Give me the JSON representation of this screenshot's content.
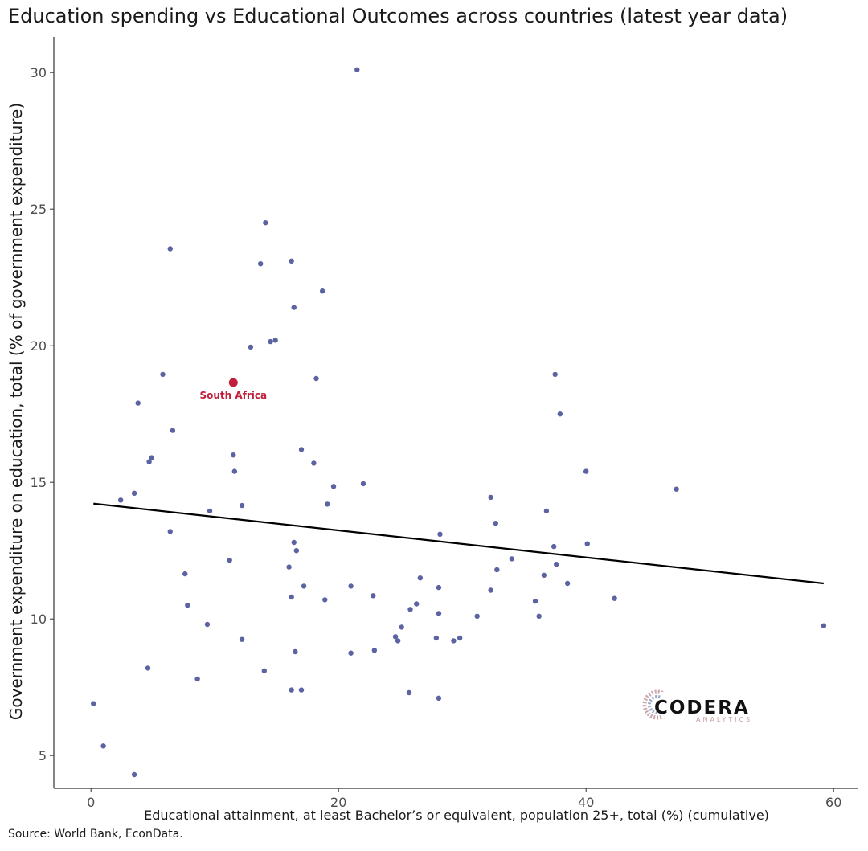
{
  "chart_data": {
    "type": "scatter",
    "title": "Education spending vs Educational Outcomes across countries (latest year data)",
    "xlabel": "Educational attainment, at least Bachelor’s or equivalent, population 25+, total (%) (cumulative)",
    "ylabel": "Government expenditure on education, total (% of government expenditure)",
    "xlim": [
      -3,
      62
    ],
    "ylim": [
      3.8,
      31.3
    ],
    "xticks": [
      0,
      20,
      40,
      60
    ],
    "yticks": [
      5,
      10,
      15,
      20,
      25,
      30
    ],
    "grid": false,
    "point_color": "#5b63a2",
    "highlight_color": "#c0203b",
    "line_color": "#000000",
    "highlight": {
      "name": "South Africa",
      "x": 11.5,
      "y": 18.65
    },
    "trendline": {
      "x": [
        0.2,
        59.2
      ],
      "y": [
        14.22,
        11.3
      ]
    },
    "points": [
      [
        21.5,
        30.1
      ],
      [
        14.1,
        24.5
      ],
      [
        6.4,
        23.55
      ],
      [
        13.7,
        23.0
      ],
      [
        16.2,
        23.1
      ],
      [
        18.7,
        22.0
      ],
      [
        16.4,
        21.4
      ],
      [
        12.9,
        19.95
      ],
      [
        14.5,
        20.15
      ],
      [
        14.9,
        20.2
      ],
      [
        5.8,
        18.95
      ],
      [
        18.2,
        18.8
      ],
      [
        3.8,
        17.9
      ],
      [
        6.6,
        16.9
      ],
      [
        11.5,
        16.0
      ],
      [
        17.0,
        16.2
      ],
      [
        4.7,
        15.75
      ],
      [
        4.9,
        15.9
      ],
      [
        11.6,
        15.4
      ],
      [
        18.0,
        15.7
      ],
      [
        3.5,
        14.6
      ],
      [
        19.6,
        14.85
      ],
      [
        22.0,
        14.95
      ],
      [
        2.4,
        14.35
      ],
      [
        9.6,
        13.95
      ],
      [
        12.2,
        14.15
      ],
      [
        19.1,
        14.2
      ],
      [
        6.4,
        13.2
      ],
      [
        16.4,
        12.8
      ],
      [
        16.6,
        12.5
      ],
      [
        11.2,
        12.15
      ],
      [
        7.6,
        11.65
      ],
      [
        16.0,
        11.9
      ],
      [
        17.2,
        11.2
      ],
      [
        21.0,
        11.2
      ],
      [
        7.8,
        10.5
      ],
      [
        16.2,
        10.8
      ],
      [
        18.9,
        10.7
      ],
      [
        22.8,
        10.85
      ],
      [
        9.4,
        9.8
      ],
      [
        12.2,
        9.25
      ],
      [
        16.5,
        8.8
      ],
      [
        4.6,
        8.2
      ],
      [
        8.6,
        7.8
      ],
      [
        14.0,
        8.1
      ],
      [
        16.2,
        7.4
      ],
      [
        17.0,
        7.4
      ],
      [
        21.0,
        8.75
      ],
      [
        22.9,
        8.85
      ],
      [
        25.1,
        9.7
      ],
      [
        24.6,
        9.35
      ],
      [
        24.8,
        9.2
      ],
      [
        25.8,
        10.35
      ],
      [
        26.3,
        10.55
      ],
      [
        26.6,
        11.5
      ],
      [
        25.7,
        7.3
      ],
      [
        28.2,
        13.1
      ],
      [
        28.1,
        11.15
      ],
      [
        28.1,
        10.2
      ],
      [
        27.9,
        9.3
      ],
      [
        29.3,
        9.2
      ],
      [
        29.8,
        9.3
      ],
      [
        28.1,
        7.1
      ],
      [
        31.2,
        10.1
      ],
      [
        32.3,
        14.45
      ],
      [
        32.7,
        13.5
      ],
      [
        32.8,
        11.8
      ],
      [
        32.3,
        11.05
      ],
      [
        34.0,
        12.2
      ],
      [
        35.9,
        10.65
      ],
      [
        36.2,
        10.1
      ],
      [
        36.6,
        11.6
      ],
      [
        36.8,
        13.95
      ],
      [
        37.4,
        12.65
      ],
      [
        37.6,
        12.0
      ],
      [
        38.5,
        11.3
      ],
      [
        37.5,
        18.95
      ],
      [
        37.9,
        17.5
      ],
      [
        40.0,
        15.4
      ],
      [
        40.1,
        12.75
      ],
      [
        42.3,
        10.75
      ],
      [
        47.3,
        14.75
      ],
      [
        59.2,
        9.75
      ],
      [
        0.2,
        6.9
      ],
      [
        1.0,
        5.35
      ],
      [
        3.5,
        4.3
      ]
    ]
  },
  "logo": {
    "name": "CODERA",
    "sub": "ANALYTICS"
  },
  "source": "Source: World Bank, EconData."
}
